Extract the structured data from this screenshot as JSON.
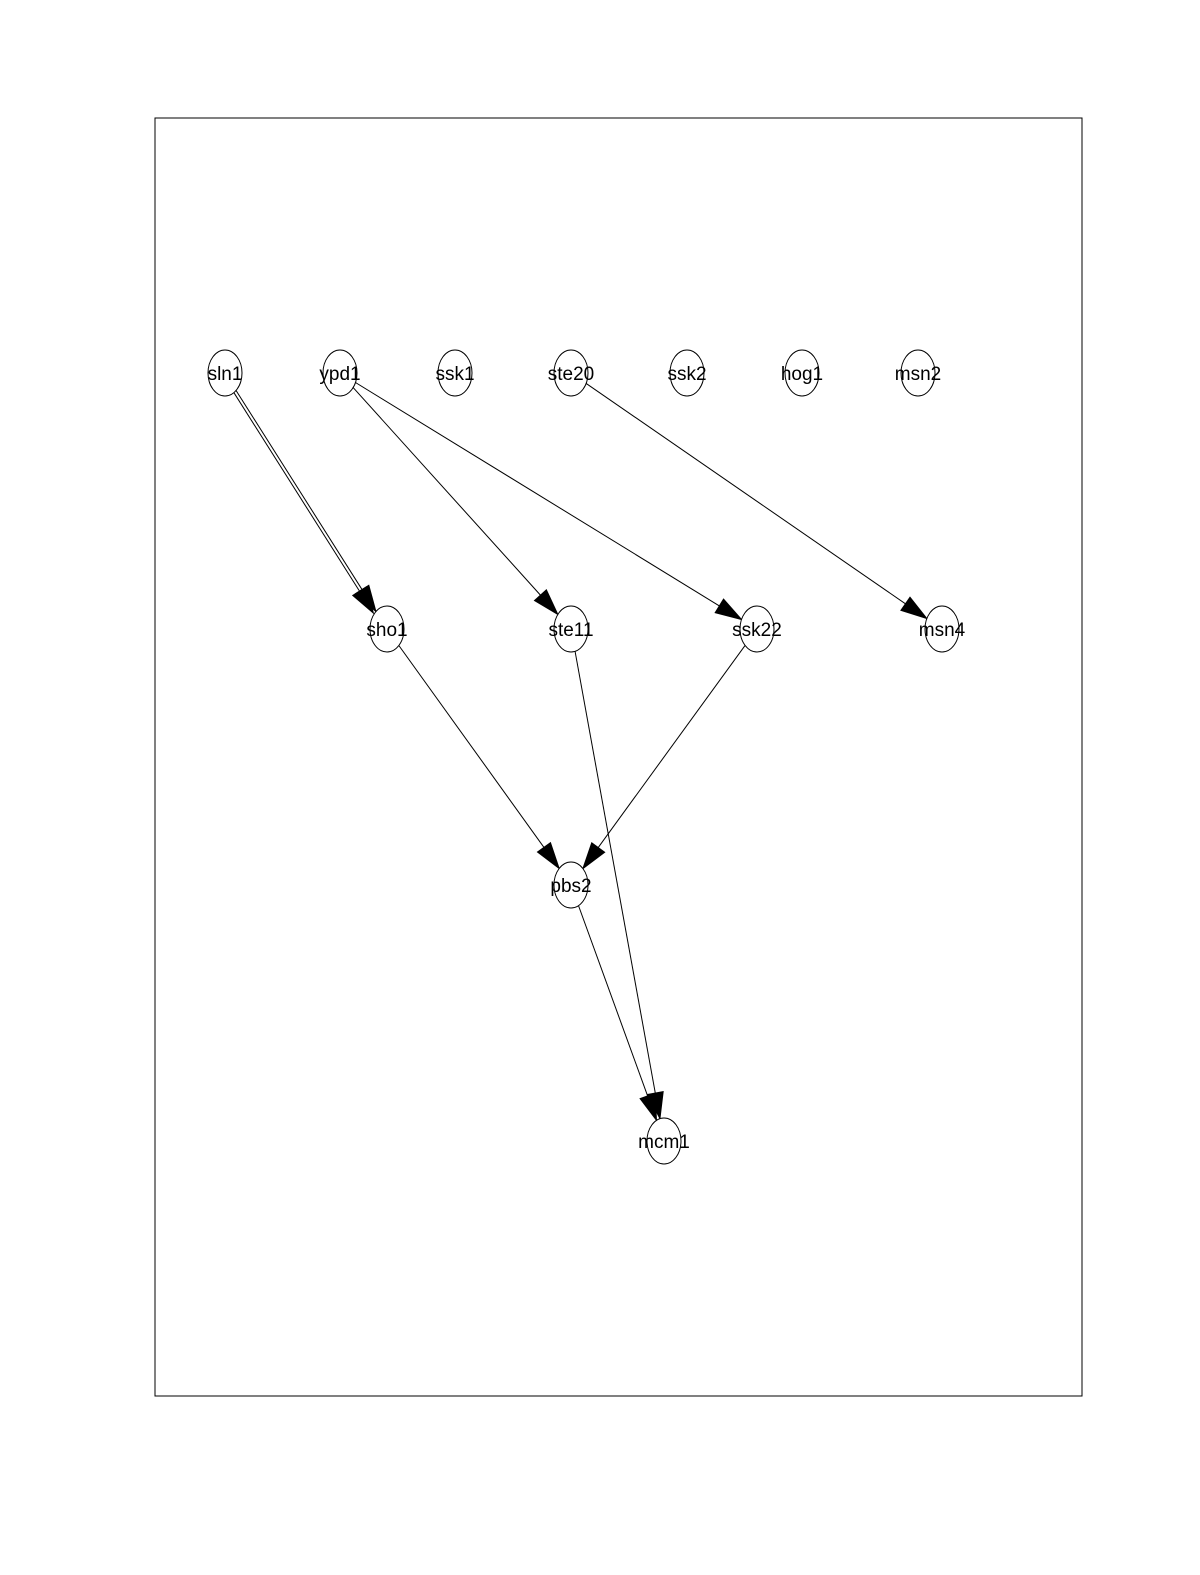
{
  "diagram": {
    "type": "directed-graph",
    "nodes": [
      {
        "id": "sln1",
        "label": "sln1"
      },
      {
        "id": "ypd1",
        "label": "ypd1"
      },
      {
        "id": "ssk1",
        "label": "ssk1"
      },
      {
        "id": "ste20",
        "label": "ste20"
      },
      {
        "id": "ssk2",
        "label": "ssk2"
      },
      {
        "id": "hog1",
        "label": "hog1"
      },
      {
        "id": "msn2",
        "label": "msn2"
      },
      {
        "id": "sho1",
        "label": "sho1"
      },
      {
        "id": "ste11",
        "label": "ste11"
      },
      {
        "id": "ssk22",
        "label": "ssk22"
      },
      {
        "id": "msn4",
        "label": "msn4"
      },
      {
        "id": "pbs2",
        "label": "pbs2"
      },
      {
        "id": "mcm1",
        "label": "mcm1"
      }
    ],
    "edges": [
      {
        "from": "sln1",
        "to": "sho1"
      },
      {
        "from": "sln1",
        "to": "sho1"
      },
      {
        "from": "ypd1",
        "to": "ste11"
      },
      {
        "from": "ypd1",
        "to": "ssk22"
      },
      {
        "from": "ste20",
        "to": "msn4"
      },
      {
        "from": "sho1",
        "to": "pbs2"
      },
      {
        "from": "ssk22",
        "to": "pbs2"
      },
      {
        "from": "ste11",
        "to": "mcm1"
      },
      {
        "from": "pbs2",
        "to": "mcm1"
      }
    ]
  }
}
